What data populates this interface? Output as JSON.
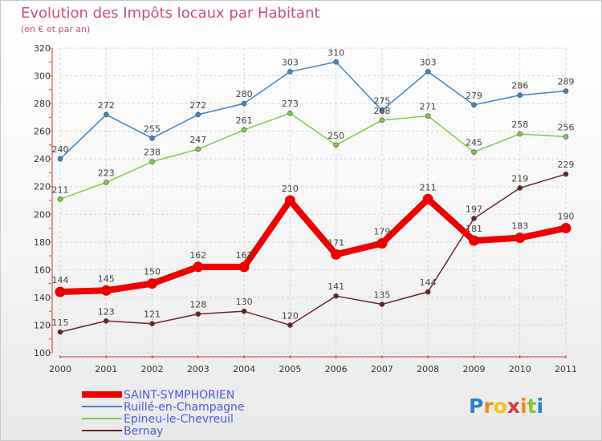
{
  "chart_data": {
    "type": "line",
    "title": "Evolution des Impôts locaux par Habitant",
    "subtitle": "(en € et par an)",
    "categories": [
      "2000",
      "2001",
      "2002",
      "2003",
      "2004",
      "2005",
      "2006",
      "2007",
      "2008",
      "2009",
      "2010",
      "2011"
    ],
    "ylim": [
      100,
      320
    ],
    "yticks": [
      "100",
      "120",
      "140",
      "160",
      "180",
      "200",
      "220",
      "240",
      "260",
      "280",
      "300",
      "320"
    ],
    "grid": true,
    "legend_position": "bottom-left",
    "series": [
      {
        "name": "SAINT-SYMPHORIEN",
        "color": "#ee0000",
        "values": [
          144,
          145,
          150,
          162,
          162,
          210,
          171,
          179,
          211,
          181,
          183,
          190
        ]
      },
      {
        "name": "Ruillé-en-Champagne",
        "color": "#3d87c8",
        "values": [
          240,
          272,
          255,
          272,
          280,
          303,
          310,
          275,
          303,
          279,
          286,
          289
        ]
      },
      {
        "name": "Epineu-le-Chevreuil",
        "color": "#7dcd4b",
        "values": [
          211,
          223,
          238,
          247,
          261,
          273,
          250,
          268,
          271,
          245,
          258,
          256
        ]
      },
      {
        "name": "Bernay",
        "color": "#6e2323",
        "values": [
          115,
          123,
          121,
          128,
          130,
          120,
          141,
          135,
          144,
          197,
          219,
          229
        ]
      }
    ]
  },
  "logo": {
    "letters": [
      "P",
      "r",
      "o",
      "x",
      "i",
      "t",
      "i"
    ],
    "colors": [
      "#2e7fd1",
      "#f08a1e",
      "#f4c01e",
      "#d63a3a",
      "#f08a1e",
      "#8bc53f",
      "#2e7fd1"
    ]
  }
}
